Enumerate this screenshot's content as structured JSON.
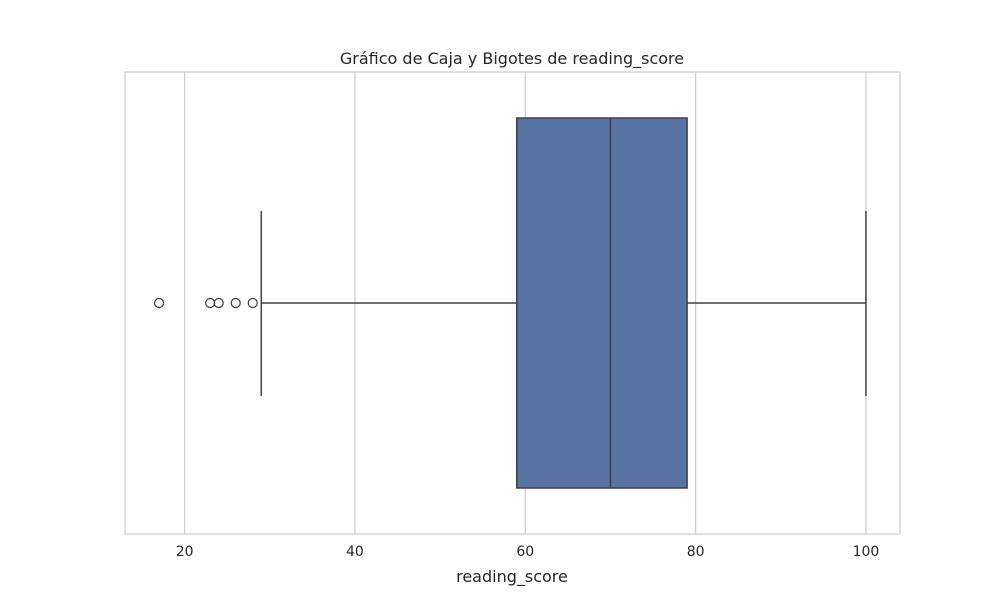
{
  "chart_data": {
    "type": "box",
    "title": "Gráfico de Caja y Bigotes de reading_score",
    "xlabel": "reading_score",
    "ylabel": "",
    "xlim": [
      13,
      104
    ],
    "xticks": [
      20,
      40,
      60,
      80,
      100
    ],
    "xtick_labels": [
      "20",
      "40",
      "60",
      "80",
      "100"
    ],
    "grid": "vertical",
    "box": {
      "whisker_low": 29,
      "q1": 59,
      "median": 70,
      "q3": 79,
      "whisker_high": 100,
      "outliers": [
        17,
        23,
        24,
        26,
        28
      ]
    },
    "colors": {
      "box_fill": "#5874a4",
      "line": "#404040",
      "grid": "#cccccc",
      "frame": "#cccccc"
    }
  }
}
